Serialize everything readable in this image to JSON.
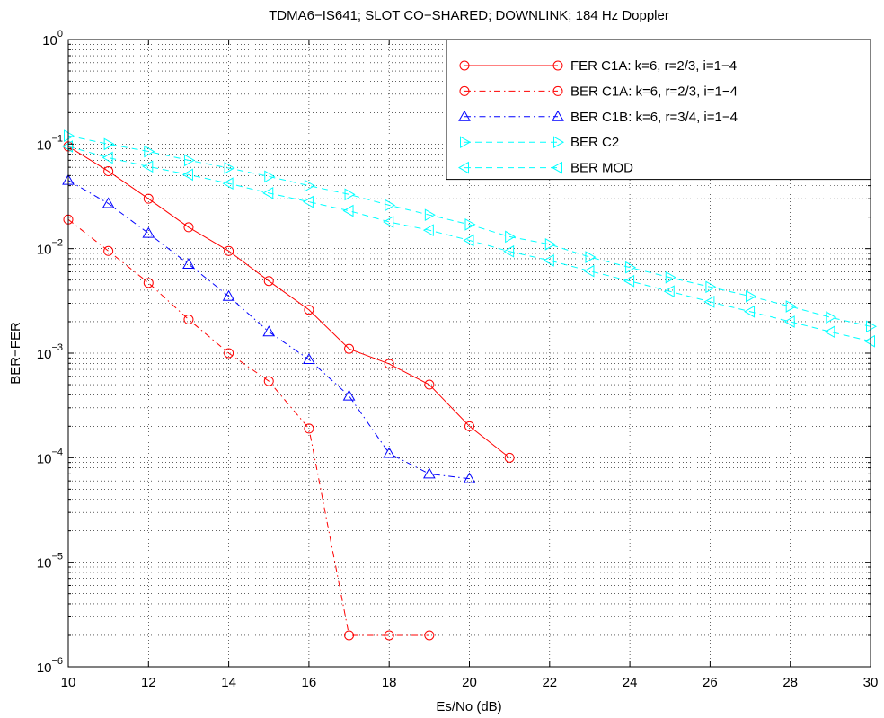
{
  "chart_data": {
    "type": "line",
    "title": "TDMA6−IS641; SLOT CO−SHARED; DOWNLINK; 184 Hz Doppler",
    "xlabel": "Es/No (dB)",
    "ylabel": "BER−FER",
    "xlim": [
      10,
      30
    ],
    "ylim": [
      1e-06,
      1
    ],
    "yscale": "log",
    "grid": true,
    "legend_position": "top-right",
    "x_ticks": [
      "10",
      "12",
      "14",
      "16",
      "18",
      "20",
      "22",
      "24",
      "26",
      "28",
      "30"
    ],
    "y_ticks": [
      {
        "base": "10",
        "exp": "0",
        "value": 1
      },
      {
        "base": "10",
        "exp": "−1",
        "value": 0.1
      },
      {
        "base": "10",
        "exp": "−2",
        "value": 0.01
      },
      {
        "base": "10",
        "exp": "−3",
        "value": 0.001
      },
      {
        "base": "10",
        "exp": "−4",
        "value": 0.0001
      },
      {
        "base": "10",
        "exp": "−5",
        "value": 1e-05
      },
      {
        "base": "10",
        "exp": "−6",
        "value": 1e-06
      }
    ],
    "series": [
      {
        "name": "FER C1A: k=6, r=2/3, i=1−4",
        "color": "#ff0000",
        "dash": "solid",
        "marker": "circle",
        "x": [
          10,
          11,
          12,
          13,
          14,
          15,
          16,
          17,
          18,
          19,
          20,
          21
        ],
        "y": [
          0.095,
          0.055,
          0.03,
          0.016,
          0.0095,
          0.0049,
          0.0026,
          0.0011,
          0.00079,
          0.0005,
          0.0002,
          0.0001
        ]
      },
      {
        "name": "BER C1A: k=6, r=2/3, i=1−4",
        "color": "#ff0000",
        "dash": "dashdot",
        "marker": "circle",
        "x": [
          10,
          11,
          12,
          13,
          14,
          15,
          16,
          17,
          18,
          19
        ],
        "y": [
          0.019,
          0.0095,
          0.0047,
          0.0021,
          0.001,
          0.00054,
          0.00019,
          2e-06,
          2e-06,
          2e-06
        ]
      },
      {
        "name": "BER C1B: k=6, r=3/4, i=1−4",
        "color": "#0000ff",
        "dash": "dashdot",
        "marker": "triangle-up",
        "x": [
          10,
          11,
          12,
          13,
          14,
          15,
          16,
          17,
          18,
          19,
          20
        ],
        "y": [
          0.045,
          0.027,
          0.014,
          0.0071,
          0.0035,
          0.0016,
          0.00087,
          0.00039,
          0.00011,
          7e-05,
          6.3e-05
        ]
      },
      {
        "name": "BER C2",
        "color": "#00ffff",
        "dash": "dashed",
        "marker": "triangle-right",
        "x": [
          10,
          11,
          12,
          13,
          14,
          15,
          16,
          17,
          18,
          19,
          20,
          21,
          22,
          23,
          24,
          25,
          26,
          27,
          28,
          29,
          30
        ],
        "y": [
          0.12,
          0.1,
          0.085,
          0.07,
          0.059,
          0.049,
          0.04,
          0.033,
          0.026,
          0.021,
          0.017,
          0.013,
          0.011,
          0.0083,
          0.0066,
          0.0053,
          0.0043,
          0.0035,
          0.0028,
          0.0022,
          0.0018
        ]
      },
      {
        "name": "BER MOD",
        "color": "#00ffff",
        "dash": "dashed",
        "marker": "triangle-left",
        "x": [
          10,
          11,
          12,
          13,
          14,
          15,
          16,
          17,
          18,
          19,
          20,
          21,
          22,
          23,
          24,
          25,
          26,
          27,
          28,
          29,
          30
        ],
        "y": [
          0.095,
          0.074,
          0.061,
          0.051,
          0.042,
          0.034,
          0.028,
          0.023,
          0.018,
          0.015,
          0.012,
          0.0094,
          0.0077,
          0.0061,
          0.0049,
          0.0039,
          0.0031,
          0.0025,
          0.002,
          0.0016,
          0.0013
        ]
      }
    ]
  }
}
